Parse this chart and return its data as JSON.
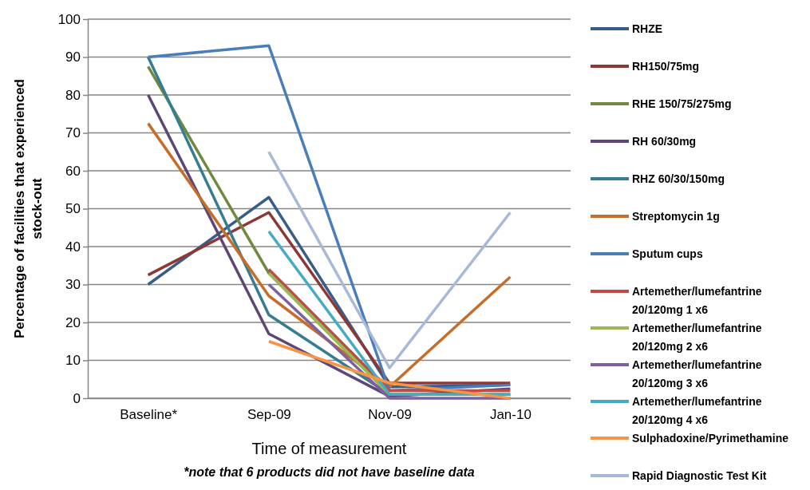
{
  "chart_data": {
    "type": "line",
    "xlabel": "Time of measurement",
    "ylabel": "Percentage of facilities that experienced stock-out",
    "annotations": [
      "*note that 6 products did not have baseline data"
    ],
    "categories": [
      "Baseline*",
      "Sep-09",
      "Nov-09",
      "Jan-10"
    ],
    "ylim": [
      0,
      100
    ],
    "yticks": [
      0,
      10,
      20,
      30,
      40,
      50,
      60,
      70,
      80,
      90,
      100
    ],
    "grid": "y",
    "legend": "right",
    "marker": "none",
    "line_style": "solid",
    "series": [
      {
        "name": "RHZE",
        "color": "#385d8a",
        "values": [
          30,
          53,
          3,
          3.5
        ]
      },
      {
        "name": "RH150/75mg",
        "color": "#8c3836",
        "values": [
          32.5,
          49,
          4,
          4
        ]
      },
      {
        "name": "RHE 150/75/275mg",
        "color": "#71893f",
        "values": [
          87.5,
          33,
          1,
          null
        ]
      },
      {
        "name": "RH 60/30mg",
        "color": "#5c4776",
        "values": [
          80,
          17,
          0.5,
          2.5
        ]
      },
      {
        "name": "RHZ 60/30/150mg",
        "color": "#357d91",
        "values": [
          90,
          22,
          1,
          1
        ]
      },
      {
        "name": "Streptomycin 1g",
        "color": "#c66e29",
        "values": [
          72.5,
          27,
          3,
          32
        ]
      },
      {
        "name": "Sputum cups",
        "color": "#4a7ebb",
        "values": [
          90,
          93,
          2,
          3.5
        ]
      },
      {
        "name": "Artemether/lumefantrine 20/120mg 1 x6",
        "color": "#be4b48",
        "values": [
          null,
          34,
          2,
          2
        ]
      },
      {
        "name": "Artemether/lumefantrine 20/120mg 2 x6",
        "color": "#98b954",
        "values": [
          null,
          33,
          1,
          1
        ]
      },
      {
        "name": "Artemether/lumefantrine 20/120mg 3 x6",
        "color": "#7d60a0",
        "values": [
          null,
          30,
          0,
          0
        ]
      },
      {
        "name": "Artemether/lumefantrine 20/120mg 4 x6",
        "color": "#46aac5",
        "values": [
          null,
          44,
          1,
          1
        ]
      },
      {
        "name": "Sulphadoxine/Pyrimethamine",
        "color": "#f69545",
        "values": [
          null,
          15,
          4,
          0
        ]
      },
      {
        "name": "Rapid Diagnostic Test Kit",
        "color": "#a7b9d9",
        "values": [
          null,
          65,
          8,
          49
        ]
      }
    ]
  }
}
